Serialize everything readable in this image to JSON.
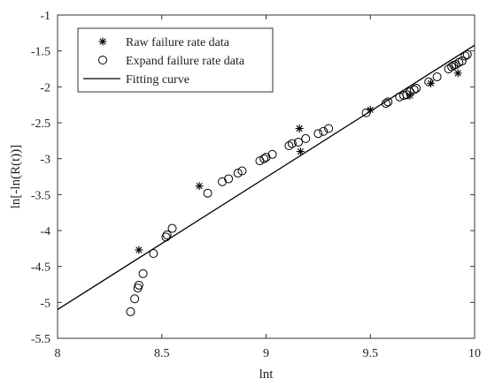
{
  "chart_data": {
    "type": "scatter",
    "title": "",
    "xlabel": "lnt",
    "ylabel": "ln[-ln(R(t))]",
    "xlim": [
      8,
      10
    ],
    "ylim": [
      -5.5,
      -1
    ],
    "xticks": [
      8,
      8.5,
      9,
      9.5,
      10
    ],
    "yticks": [
      -1,
      -1.5,
      -2,
      -2.5,
      -3,
      -3.5,
      -4,
      -4.5,
      -5,
      -5.5
    ],
    "xtick_labels": [
      "8",
      "8.5",
      "9",
      "9.5",
      "10"
    ],
    "ytick_labels": [
      "-1",
      "-1.5",
      "-2",
      "-2.5",
      "-3",
      "-3.5",
      "-4",
      "-4.5",
      "-5",
      "-5.5"
    ],
    "grid": false,
    "legend_position": "top-left",
    "series": [
      {
        "name": "Raw failure rate data",
        "marker": "asterisk",
        "color": "#000000",
        "x": [
          8.39,
          8.68,
          9.16,
          9.165,
          9.5,
          9.69,
          9.79,
          9.92
        ],
        "y": [
          -4.27,
          -3.38,
          -2.58,
          -2.9,
          -2.32,
          -2.12,
          -1.95,
          -1.81
        ]
      },
      {
        "name": "Expand failure rate data",
        "marker": "circle",
        "color": "#000000",
        "x": [
          8.35,
          8.37,
          8.385,
          8.39,
          8.41,
          8.46,
          8.52,
          8.525,
          8.55,
          8.72,
          8.79,
          8.82,
          8.865,
          8.885,
          8.97,
          8.99,
          9.0,
          9.03,
          9.11,
          9.125,
          9.155,
          9.19,
          9.25,
          9.275,
          9.3,
          9.48,
          9.575,
          9.585,
          9.64,
          9.66,
          9.675,
          9.69,
          9.71,
          9.72,
          9.78,
          9.82,
          9.875,
          9.89,
          9.9,
          9.91,
          9.925,
          9.94,
          9.955,
          9.965
        ],
        "y": [
          -5.13,
          -4.95,
          -4.8,
          -4.76,
          -4.6,
          -4.32,
          -4.09,
          -4.06,
          -3.97,
          -3.48,
          -3.32,
          -3.28,
          -3.2,
          -3.17,
          -3.03,
          -3.0,
          -2.98,
          -2.94,
          -2.82,
          -2.79,
          -2.77,
          -2.72,
          -2.65,
          -2.62,
          -2.58,
          -2.36,
          -2.23,
          -2.21,
          -2.14,
          -2.12,
          -2.11,
          -2.07,
          -2.04,
          -2.02,
          -1.93,
          -1.86,
          -1.75,
          -1.72,
          -1.7,
          -1.69,
          -1.66,
          -1.64,
          -1.57,
          -1.55
        ]
      },
      {
        "name": "Fitting curve",
        "marker": "line",
        "color": "#000000",
        "x": [
          8,
          10
        ],
        "y": [
          -5.1,
          -1.42
        ]
      }
    ]
  }
}
